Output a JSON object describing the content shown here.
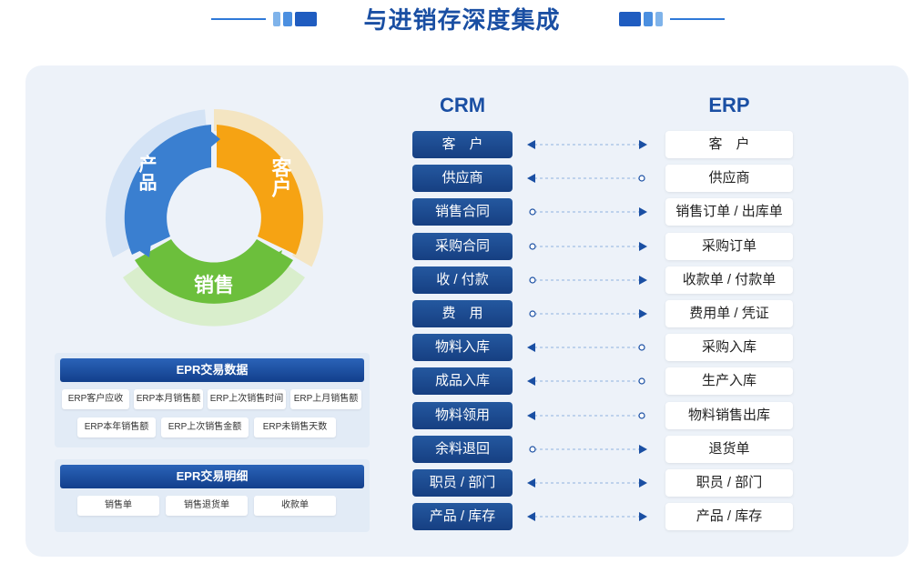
{
  "title": "与进销存深度集成",
  "colors": {
    "title": "#1a4fa3",
    "crm_fill": "#163f82",
    "arrow": "#1a4fa3",
    "donut_orange": "#f6a313",
    "donut_green": "#6cbf3c",
    "donut_blue": "#3a7fd0"
  },
  "donut": {
    "segments": [
      {
        "label": "客户",
        "color": "#f6a313"
      },
      {
        "label": "销售",
        "color": "#6cbf3c"
      },
      {
        "label": "产品",
        "color": "#3a7fd0"
      }
    ]
  },
  "trade_data": {
    "header": "EPR交易数据",
    "tags": [
      "ERP客户应收",
      "ERP本月销售额",
      "ERP上次销售时间",
      "ERP上月销售额",
      "ERP本年销售额",
      "ERP上次销售金额",
      "ERP未销售天数"
    ]
  },
  "trade_detail": {
    "header": "EPR交易明细",
    "tags": [
      "销售单",
      "销售退货单",
      "收款单"
    ]
  },
  "mapping": {
    "crm_label": "CRM",
    "erp_label": "ERP",
    "rows": [
      {
        "crm": "客　户",
        "erp": "客　户",
        "direction": "both"
      },
      {
        "crm": "供应商",
        "erp": "供应商",
        "direction": "to_crm"
      },
      {
        "crm": "销售合同",
        "erp": "销售订单 / 出库单",
        "direction": "to_erp"
      },
      {
        "crm": "采购合同",
        "erp": "采购订单",
        "direction": "to_erp"
      },
      {
        "crm": "收 / 付款",
        "erp": "收款单 / 付款单",
        "direction": "to_erp"
      },
      {
        "crm": "费　用",
        "erp": "费用单 / 凭证",
        "direction": "to_erp"
      },
      {
        "crm": "物料入库",
        "erp": "采购入库",
        "direction": "to_crm"
      },
      {
        "crm": "成品入库",
        "erp": "生产入库",
        "direction": "to_crm"
      },
      {
        "crm": "物料领用",
        "erp": "物料销售出库",
        "direction": "to_crm"
      },
      {
        "crm": "余料退回",
        "erp": "退货单",
        "direction": "to_erp"
      },
      {
        "crm": "职员 / 部门",
        "erp": "职员 / 部门",
        "direction": "both"
      },
      {
        "crm": "产品 / 库存",
        "erp": "产品 / 库存",
        "direction": "both"
      }
    ]
  }
}
